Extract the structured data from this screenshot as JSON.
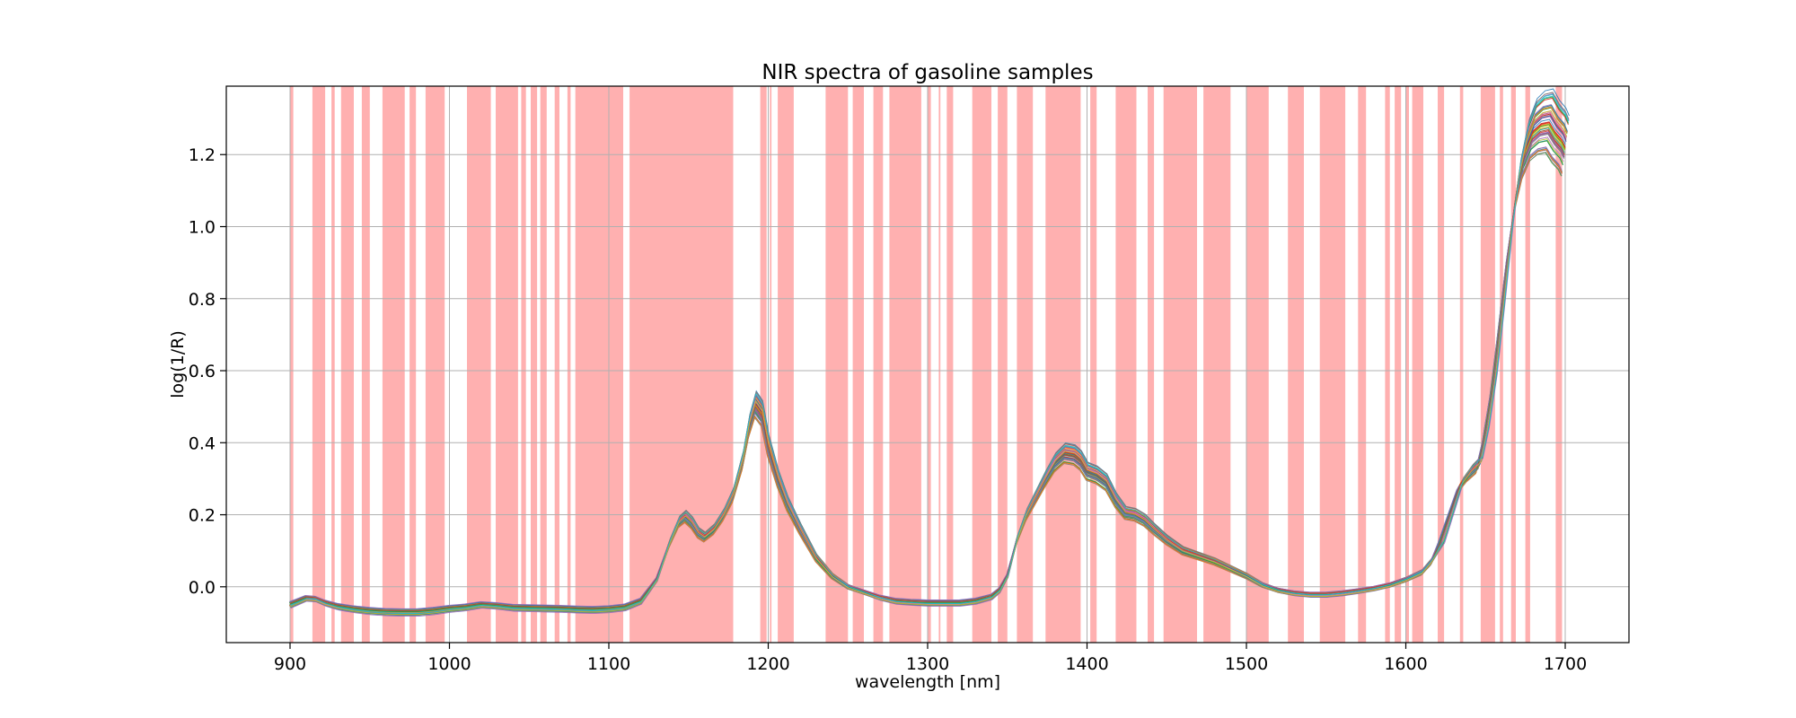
{
  "chart_data": {
    "type": "line",
    "title": "NIR spectra of gasoline samples",
    "xlabel": "wavelength [nm]",
    "ylabel": "log(1/R)",
    "xlim": [
      860,
      1740
    ],
    "ylim": [
      -0.155,
      1.39
    ],
    "xticks": [
      900,
      1000,
      1100,
      1200,
      1300,
      1400,
      1500,
      1600,
      1700
    ],
    "yticks": [
      0.0,
      0.2,
      0.4,
      0.6,
      0.8,
      1.0,
      1.2
    ],
    "ytick_labels": [
      "0.0",
      "0.2",
      "0.4",
      "0.6",
      "0.8",
      "1.0",
      "1.2"
    ],
    "grid": true,
    "highlight_color": "#ffb0b0",
    "highlight_bands": [
      [
        900,
        902
      ],
      [
        914,
        922
      ],
      [
        926,
        928
      ],
      [
        932,
        940
      ],
      [
        945,
        950
      ],
      [
        958,
        972
      ],
      [
        975,
        979
      ],
      [
        985,
        997
      ],
      [
        1011,
        1026
      ],
      [
        1029,
        1043
      ],
      [
        1045,
        1048
      ],
      [
        1051,
        1055
      ],
      [
        1057,
        1061
      ],
      [
        1066,
        1069
      ],
      [
        1074,
        1076
      ],
      [
        1079,
        1109
      ],
      [
        1113,
        1178
      ],
      [
        1195,
        1199
      ],
      [
        1201,
        1202
      ],
      [
        1206,
        1216
      ],
      [
        1236,
        1250
      ],
      [
        1253,
        1260
      ],
      [
        1266,
        1272
      ],
      [
        1276,
        1296
      ],
      [
        1300,
        1302
      ],
      [
        1307,
        1308
      ],
      [
        1312,
        1316
      ],
      [
        1328,
        1340
      ],
      [
        1344,
        1350
      ],
      [
        1356,
        1366
      ],
      [
        1374,
        1396
      ],
      [
        1402,
        1406
      ],
      [
        1418,
        1431
      ],
      [
        1438,
        1442
      ],
      [
        1448,
        1469
      ],
      [
        1473,
        1490
      ],
      [
        1500,
        1514
      ],
      [
        1526,
        1536
      ],
      [
        1546,
        1562
      ],
      [
        1570,
        1575
      ],
      [
        1587,
        1590
      ],
      [
        1593,
        1597
      ],
      [
        1600,
        1602
      ],
      [
        1604,
        1611
      ],
      [
        1620,
        1624
      ],
      [
        1634,
        1636
      ],
      [
        1647,
        1656
      ],
      [
        1659,
        1661
      ],
      [
        1666,
        1669
      ],
      [
        1675,
        1678
      ],
      [
        1694,
        1698
      ]
    ],
    "x": [
      900,
      904,
      910,
      916,
      922,
      930,
      940,
      950,
      960,
      970,
      980,
      990,
      1000,
      1010,
      1020,
      1030,
      1040,
      1050,
      1060,
      1070,
      1080,
      1090,
      1100,
      1110,
      1120,
      1130,
      1138,
      1144,
      1148,
      1152,
      1156,
      1160,
      1166,
      1172,
      1178,
      1184,
      1188,
      1192,
      1196,
      1200,
      1206,
      1212,
      1220,
      1230,
      1240,
      1250,
      1260,
      1270,
      1280,
      1290,
      1300,
      1310,
      1320,
      1330,
      1340,
      1345,
      1350,
      1356,
      1362,
      1368,
      1374,
      1380,
      1386,
      1392,
      1396,
      1400,
      1406,
      1412,
      1418,
      1424,
      1430,
      1436,
      1442,
      1450,
      1460,
      1470,
      1480,
      1490,
      1500,
      1510,
      1520,
      1530,
      1540,
      1550,
      1560,
      1570,
      1580,
      1590,
      1600,
      1610,
      1616,
      1622,
      1628,
      1634,
      1640,
      1646,
      1650,
      1655,
      1660,
      1665,
      1670,
      1675,
      1680,
      1685,
      1690,
      1694,
      1698,
      1700
    ],
    "mean_spectrum": [
      -0.05,
      -0.043,
      -0.032,
      -0.034,
      -0.045,
      -0.055,
      -0.062,
      -0.067,
      -0.07,
      -0.071,
      -0.071,
      -0.067,
      -0.061,
      -0.057,
      -0.05,
      -0.053,
      -0.058,
      -0.059,
      -0.06,
      -0.061,
      -0.063,
      -0.064,
      -0.062,
      -0.057,
      -0.04,
      0.02,
      0.12,
      0.18,
      0.195,
      0.178,
      0.15,
      0.138,
      0.16,
      0.2,
      0.255,
      0.35,
      0.445,
      0.505,
      0.48,
      0.39,
      0.3,
      0.23,
      0.16,
      0.08,
      0.03,
      0.0,
      -0.015,
      -0.03,
      -0.04,
      -0.043,
      -0.045,
      -0.045,
      -0.045,
      -0.04,
      -0.028,
      -0.01,
      0.03,
      0.13,
      0.2,
      0.25,
      0.3,
      0.345,
      0.37,
      0.365,
      0.35,
      0.32,
      0.31,
      0.29,
      0.24,
      0.205,
      0.2,
      0.185,
      0.16,
      0.13,
      0.1,
      0.085,
      0.07,
      0.05,
      0.03,
      0.005,
      -0.01,
      -0.018,
      -0.022,
      -0.022,
      -0.018,
      -0.012,
      -0.005,
      0.005,
      0.02,
      0.04,
      0.07,
      0.12,
      0.2,
      0.28,
      0.315,
      0.34,
      0.42,
      0.56,
      0.75,
      0.95,
      1.11,
      1.21,
      1.265,
      1.285,
      1.29,
      1.26,
      1.24,
      1.22
    ]
  }
}
